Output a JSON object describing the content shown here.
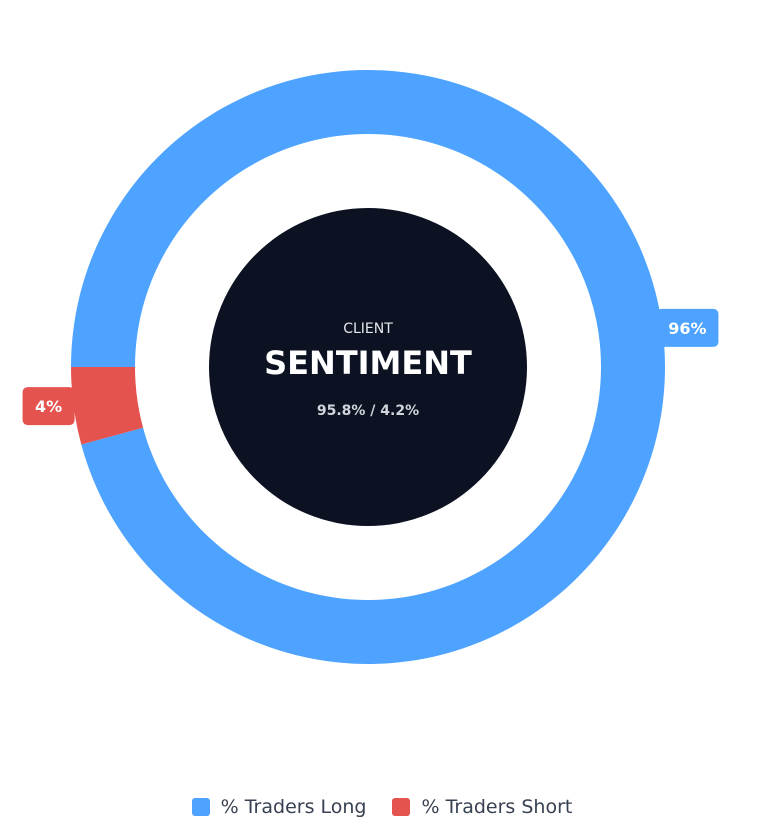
{
  "chart_data": {
    "type": "pie",
    "variant": "donut",
    "series": [
      {
        "name": "% Traders Long",
        "value": 95.8,
        "label": "96%",
        "color": "#4da3ff"
      },
      {
        "name": "% Traders Short",
        "value": 4.2,
        "label": "4%",
        "color": "#e5534f"
      }
    ],
    "center": {
      "caption": "CLIENT",
      "title": "SENTIMENT",
      "subtitle": "95.8% / 4.2%",
      "fill_color": "#0c1222"
    },
    "legend": {
      "placement": "bottom",
      "items": [
        {
          "label": "% Traders Long",
          "color": "#4da3ff"
        },
        {
          "label": "% Traders Short",
          "color": "#e5534f"
        }
      ]
    }
  }
}
